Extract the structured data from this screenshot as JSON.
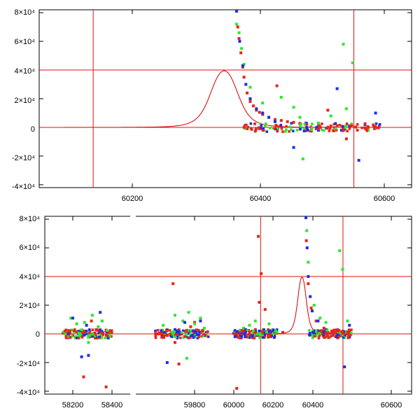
{
  "colors": {
    "red": "#e8241a",
    "green": "#2ee82e",
    "blue": "#1a2ee8",
    "line": "#e01010",
    "axis": "#000000"
  },
  "chart_data": [
    {
      "type": "scatter",
      "xlim": [
        60050,
        60650
      ],
      "ylim": [
        -42000,
        82000
      ],
      "xticks": [
        60200,
        60400,
        60600
      ],
      "xtick_labels": [
        "60200",
        "60400",
        "60600"
      ],
      "yticks": [
        -40000,
        -20000,
        0,
        20000,
        40000,
        60000,
        80000
      ],
      "ytick_labels": [
        "-4×10⁴",
        "-2×10⁴",
        "0",
        "2×10⁴",
        "4×10⁴",
        "6×10⁴",
        "8×10⁴"
      ],
      "vlines": [
        60137,
        60557
      ],
      "hlines": [
        0,
        40000
      ],
      "model": {
        "peak_x": 60348,
        "peak_y": 39500,
        "width_left": 23,
        "width_right": 23
      },
      "series": [
        {
          "color": "red",
          "x": [
            60370,
            60372,
            60375,
            60378,
            60380,
            60385,
            60390,
            60395,
            60400,
            60405,
            60410,
            60420,
            60430,
            60440,
            60450,
            60460,
            60470,
            60480,
            60500,
            60520,
            60540,
            60560,
            60580,
            60595,
            60433,
            60515,
            60545
          ],
          "y": [
            70000,
            62000,
            52000,
            42000,
            35000,
            24000,
            18000,
            15000,
            12000,
            10500,
            9000,
            7000,
            5500,
            4800,
            4000,
            3500,
            2800,
            2000,
            1500,
            1000,
            500,
            200,
            0,
            -300,
            29000,
            12000,
            -8000
          ]
        },
        {
          "color": "green",
          "x": [
            60368,
            60372,
            60376,
            60380,
            60390,
            60410,
            60440,
            60460,
            60470,
            60475,
            60500,
            60520,
            60540,
            60545,
            60555,
            60580
          ],
          "y": [
            72000,
            66000,
            55000,
            44000,
            28000,
            17000,
            21000,
            14000,
            7000,
            -22000,
            3000,
            8000,
            58000,
            13000,
            45000,
            -2000
          ]
        },
        {
          "color": "blue",
          "x": [
            60368,
            60373,
            60378,
            60383,
            60390,
            60400,
            60410,
            60420,
            60430,
            60460,
            60480,
            60500,
            60530,
            60537,
            60550,
            60565,
            60575,
            60592
          ],
          "y": [
            81000,
            60000,
            43000,
            30000,
            20000,
            13000,
            10000,
            7000,
            4000,
            -14000,
            3000,
            -2000,
            27000,
            -2000,
            1000,
            -23000,
            2000,
            10000
          ]
        }
      ]
    },
    {
      "type": "scatter",
      "xlim": [
        58080,
        60660
      ],
      "ylim": [
        -42000,
        82000
      ],
      "xticks": [
        58200,
        58400,
        59800,
        60000,
        60200,
        60400,
        60600
      ],
      "xtick_labels": [
        "58200",
        "58400",
        "59800",
        "60000",
        "60200",
        "60400",
        "60600"
      ],
      "yticks": [
        -40000,
        -20000,
        0,
        20000,
        40000,
        60000,
        80000
      ],
      "ytick_labels": [
        "-4×10⁴",
        "-2×10⁴",
        "0",
        "2×10⁴",
        "4×10⁴",
        "6×10⁴",
        "8×10⁴"
      ],
      "vlines": [
        60137,
        60557
      ],
      "hlines": [
        0,
        40000
      ],
      "model": {
        "peak_x": 60348,
        "peak_y": 39500,
        "width_left": 23,
        "width_right": 23
      },
      "series": [
        {
          "color": "red",
          "x": [
            58150,
            58180,
            58230,
            58260,
            58290,
            58320,
            58350,
            58380,
            58255,
            58370,
            58295,
            59630,
            59660,
            59690,
            59720,
            59760,
            59800,
            59830,
            59855,
            59700,
            59780,
            60005,
            60050,
            60080,
            60110,
            60150,
            60190,
            60220,
            60250,
            60125,
            60140,
            60160,
            60130,
            60015,
            60370,
            60380,
            60395,
            60420,
            60460,
            60500,
            60540,
            60580
          ],
          "y": [
            500,
            -500,
            1000,
            2000,
            -1000,
            3000,
            500,
            -2000,
            -30000,
            -37000,
            9000,
            0,
            3000,
            35000,
            -21000,
            1000,
            8000,
            1000,
            -1000,
            -6000,
            5000,
            0,
            2000,
            -1000,
            3000,
            1000,
            -2000,
            500,
            1000,
            68000,
            42000,
            17000,
            22000,
            -38000,
            65000,
            35000,
            18000,
            9000,
            4000,
            2000,
            700,
            100
          ]
        },
        {
          "color": "green",
          "x": [
            58190,
            58220,
            58260,
            58300,
            58330,
            58350,
            58280,
            58320,
            59640,
            59700,
            59740,
            59770,
            59800,
            59830,
            59850,
            59760,
            60050,
            60080,
            60110,
            60150,
            60180,
            60210,
            60372,
            60380,
            60410,
            60440,
            60470,
            60540,
            60555,
            60580
          ],
          "y": [
            11000,
            7000,
            8000,
            13000,
            5000,
            9000,
            -6000,
            -3000,
            6000,
            13000,
            9000,
            15000,
            7000,
            11000,
            4000,
            -17000,
            4000,
            6000,
            9000,
            3000,
            7000,
            2000,
            72000,
            50000,
            20000,
            11000,
            8000,
            58000,
            45000,
            9000
          ]
        },
        {
          "color": "blue",
          "x": [
            58160,
            58200,
            58240,
            58270,
            58310,
            58340,
            58370,
            58245,
            58280,
            59650,
            59700,
            59750,
            59790,
            59830,
            59860,
            59660,
            60000,
            60060,
            60120,
            60200,
            60368,
            60374,
            60380,
            60390,
            60400,
            60430,
            60470,
            60500,
            60530,
            60565,
            60590
          ],
          "y": [
            1000,
            11000,
            2000,
            6000,
            -1000,
            15000,
            2000,
            -16000,
            -15000,
            1000,
            3000,
            8000,
            2000,
            9000,
            1000,
            -20000,
            500,
            3000,
            -1000,
            1000,
            81000,
            60000,
            40000,
            26000,
            16000,
            9000,
            3000,
            1000,
            0,
            -23000,
            6000
          ]
        }
      ]
    }
  ]
}
